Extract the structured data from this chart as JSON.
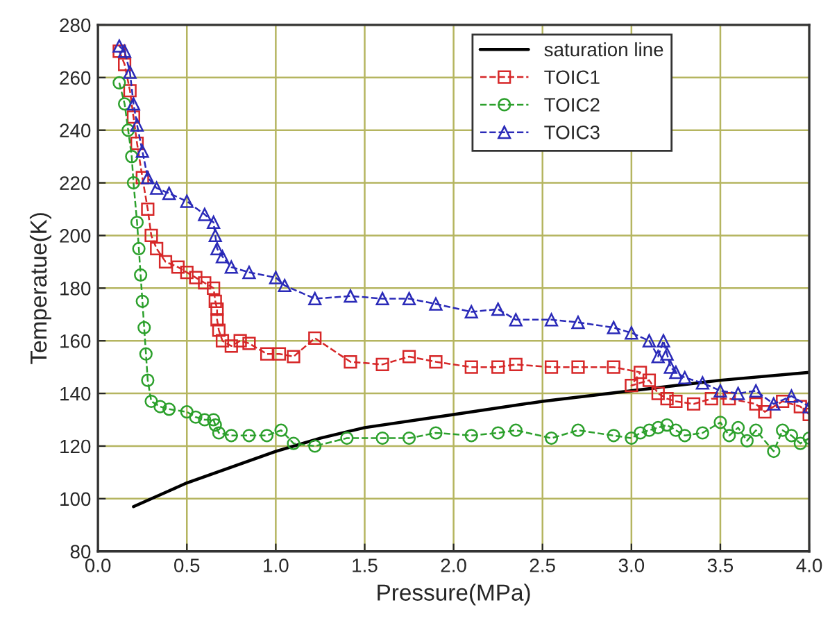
{
  "chart_data": {
    "type": "line",
    "xlabel": "Pressure(MPa)",
    "ylabel": "Temperatue(K)",
    "xlim": [
      0,
      4.0
    ],
    "ylim": [
      80,
      280
    ],
    "xticks": [
      {
        "value": 0,
        "label": "0.0"
      },
      0.5,
      {
        "value": 1,
        "label": "1.0"
      },
      1.5,
      {
        "value": 2,
        "label": "2.0"
      },
      2.5,
      {
        "value": 3,
        "label": "3.0"
      },
      3.5,
      {
        "value": 4,
        "label": "4.0"
      }
    ],
    "yticks": [
      80,
      100,
      120,
      140,
      160,
      180,
      200,
      220,
      240,
      260,
      280
    ],
    "grid": true,
    "legend": "top right",
    "series": [
      {
        "name": "saturation line",
        "color": "#000000",
        "marker": "none",
        "line_style": "solid",
        "x": [
          0.2,
          0.4,
          0.5,
          0.75,
          1.0,
          1.25,
          1.5,
          2.0,
          2.5,
          3.0,
          3.5,
          4.0
        ],
        "values": [
          97,
          103,
          106,
          112,
          118,
          123,
          127,
          132,
          137,
          141,
          145,
          148
        ]
      },
      {
        "name": "TOIC1",
        "color": "#d62728",
        "marker": "square",
        "line_style": "dashed",
        "x": [
          0.12,
          0.15,
          0.18,
          0.2,
          0.22,
          0.25,
          0.28,
          0.3,
          0.33,
          0.38,
          0.45,
          0.5,
          0.55,
          0.6,
          0.65,
          0.66,
          0.67,
          0.67,
          0.68,
          0.7,
          0.75,
          0.8,
          0.85,
          0.95,
          1.02,
          1.1,
          1.22,
          1.42,
          1.6,
          1.75,
          1.9,
          2.1,
          2.25,
          2.35,
          2.55,
          2.7,
          2.9,
          3.05,
          3.0,
          3.1,
          3.15,
          3.2,
          3.25,
          3.35,
          3.45,
          3.55,
          3.7,
          3.75,
          3.85,
          3.95,
          4.0
        ],
        "values": [
          270,
          265,
          255,
          245,
          235,
          222,
          210,
          200,
          195,
          190,
          188,
          186,
          184,
          182,
          180,
          175,
          172,
          168,
          164,
          160,
          158,
          160,
          159,
          155,
          155,
          154,
          161,
          152,
          151,
          154,
          152,
          150,
          150,
          151,
          150,
          150,
          150,
          148,
          143,
          145,
          140,
          138,
          137,
          136,
          138,
          138,
          136,
          133,
          137,
          135,
          132
        ]
      },
      {
        "name": "TOIC2",
        "color": "#2ca02c",
        "marker": "circle",
        "line_style": "dashed",
        "x": [
          0.12,
          0.15,
          0.17,
          0.19,
          0.2,
          0.22,
          0.23,
          0.24,
          0.25,
          0.26,
          0.27,
          0.28,
          0.3,
          0.35,
          0.4,
          0.5,
          0.55,
          0.6,
          0.65,
          0.66,
          0.68,
          0.75,
          0.85,
          0.95,
          1.03,
          1.1,
          1.22,
          1.4,
          1.6,
          1.75,
          1.9,
          2.1,
          2.25,
          2.35,
          2.55,
          2.7,
          2.9,
          3.0,
          3.05,
          3.1,
          3.15,
          3.2,
          3.25,
          3.3,
          3.4,
          3.5,
          3.55,
          3.6,
          3.65,
          3.7,
          3.8,
          3.85,
          3.9,
          3.95,
          4.0
        ],
        "values": [
          258,
          250,
          240,
          230,
          220,
          205,
          195,
          185,
          175,
          165,
          155,
          145,
          137,
          135,
          134,
          133,
          131,
          130,
          130,
          128,
          125,
          124,
          124,
          124,
          126,
          121,
          120,
          123,
          123,
          123,
          125,
          124,
          125,
          126,
          123,
          126,
          124,
          123,
          125,
          126,
          127,
          128,
          126,
          124,
          125,
          129,
          124,
          127,
          122,
          126,
          118,
          126,
          124,
          121,
          123
        ]
      },
      {
        "name": "TOIC3",
        "color": "#2a2ab8",
        "marker": "triangle",
        "line_style": "dashed",
        "x": [
          0.12,
          0.15,
          0.18,
          0.2,
          0.22,
          0.25,
          0.28,
          0.33,
          0.4,
          0.5,
          0.6,
          0.65,
          0.66,
          0.67,
          0.7,
          0.75,
          0.85,
          1.0,
          1.05,
          1.22,
          1.42,
          1.6,
          1.75,
          1.9,
          2.1,
          2.25,
          2.35,
          2.55,
          2.7,
          2.9,
          3.0,
          3.1,
          3.15,
          3.18,
          3.2,
          3.22,
          3.25,
          3.3,
          3.4,
          3.5,
          3.6,
          3.7,
          3.8,
          3.9,
          4.0
        ],
        "values": [
          272,
          270,
          262,
          250,
          242,
          232,
          222,
          218,
          216,
          213,
          208,
          205,
          200,
          195,
          192,
          188,
          186,
          184,
          181,
          176,
          177,
          176,
          176,
          174,
          171,
          172,
          168,
          168,
          167,
          165,
          163,
          160,
          154,
          160,
          155,
          150,
          148,
          146,
          144,
          141,
          140,
          141,
          136,
          139,
          135
        ]
      }
    ]
  }
}
